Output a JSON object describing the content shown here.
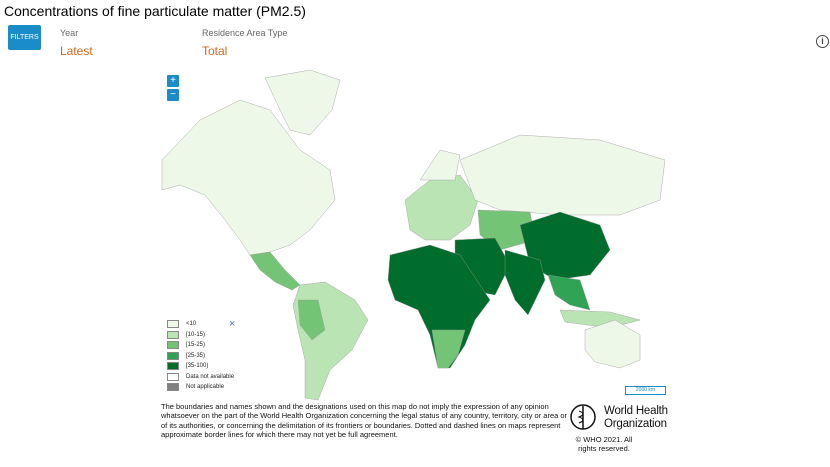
{
  "header": {
    "title": "Concentrations of fine particulate matter (PM2.5)",
    "info_icon": "i"
  },
  "filters": {
    "button": "FILTERS",
    "items": [
      {
        "label": "Year",
        "value": "Latest"
      },
      {
        "label": "Residence Area Type",
        "value": "Total"
      }
    ]
  },
  "map": {
    "zoom_in": "+",
    "zoom_out": "−",
    "close": "×",
    "scale": "2000 km",
    "legend": [
      {
        "label": "<10",
        "color": "#edf8e9"
      },
      {
        "label": "[10-15)",
        "color": "#bae4b3"
      },
      {
        "label": "[15-25)",
        "color": "#74c476"
      },
      {
        "label": "[25-35)",
        "color": "#31a354"
      },
      {
        "label": "[35-100)",
        "color": "#006d2c"
      },
      {
        "label": "Data not available",
        "color": "#ffffff"
      },
      {
        "label": "Not applicable",
        "color": "#808080"
      }
    ]
  },
  "footer": {
    "disclaimer": "The boundaries and names shown and the designations used on this map do not imply the expression of any opinion whatsoever on the part of the World Health Organization concerning the legal status of any country, territory, city or area or of its authorities, or concerning the delimitation of its frontiers or boundaries. Dotted and dashed lines on maps represent approximate border lines for which there may not yet be full agreement.",
    "logo_line1": "World Health",
    "logo_line2": "Organization",
    "copyright": "© WHO 2021. All rights reserved."
  }
}
